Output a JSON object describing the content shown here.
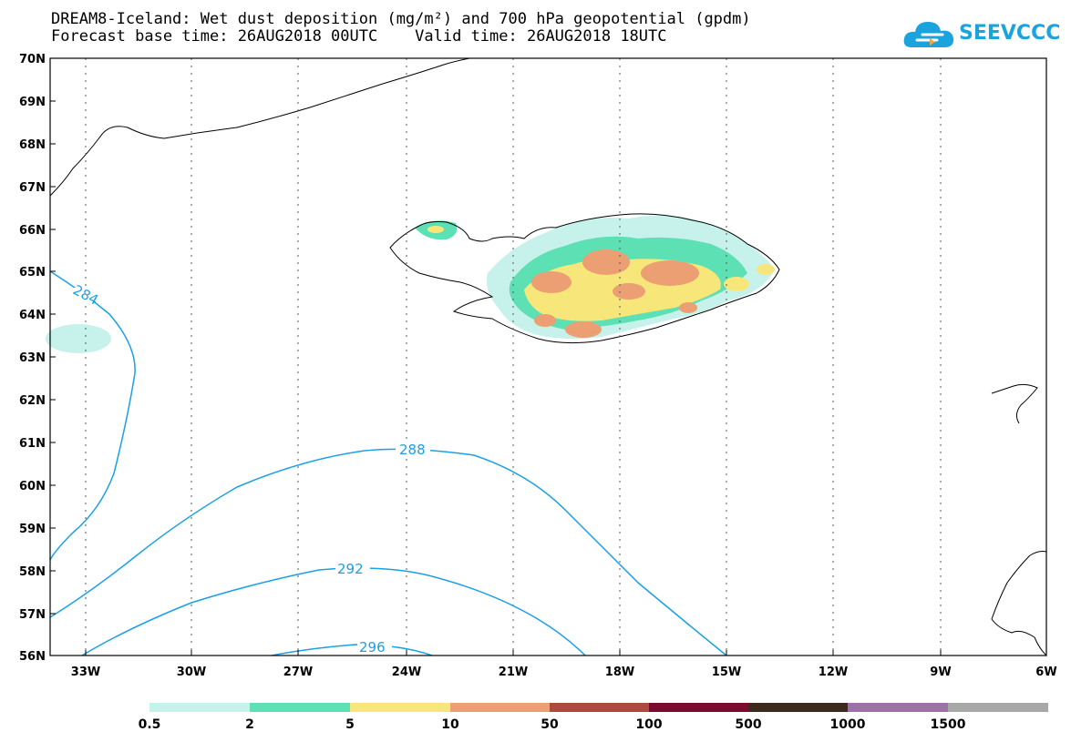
{
  "header": {
    "title_line1": "DREAM8-Iceland: Wet dust deposition (mg/m²) and 700 hPa geopotential (gpdm)",
    "title_line2": "Forecast base time: 26AUG2018 00UTC    Valid time: 26AUG2018 18UTC"
  },
  "logo": {
    "text": "SEEVCCC",
    "icon": "cloud-logo-icon"
  },
  "map": {
    "lat_labels": [
      "70N",
      "69N",
      "68N",
      "67N",
      "66N",
      "65N",
      "64N",
      "63N",
      "62N",
      "61N",
      "60N",
      "59N",
      "58N",
      "57N",
      "56N"
    ],
    "lon_labels": [
      "33W",
      "30W",
      "27W",
      "24W",
      "21W",
      "18W",
      "15W",
      "12W",
      "9W",
      "6W"
    ],
    "contour_labels": [
      "284",
      "288",
      "292",
      "296"
    ],
    "contour_color": "#19a0e8"
  },
  "colorbar": {
    "labels": [
      "0.5",
      "2",
      "5",
      "10",
      "50",
      "100",
      "500",
      "1000",
      "1500"
    ],
    "colors": [
      "#c7f2ec",
      "#5de0b4",
      "#f7e67a",
      "#eb9f72",
      "#ac4a3f",
      "#7a0a2e",
      "#3e2a1c",
      "#9a72a5",
      "#a8a8a8"
    ]
  }
}
